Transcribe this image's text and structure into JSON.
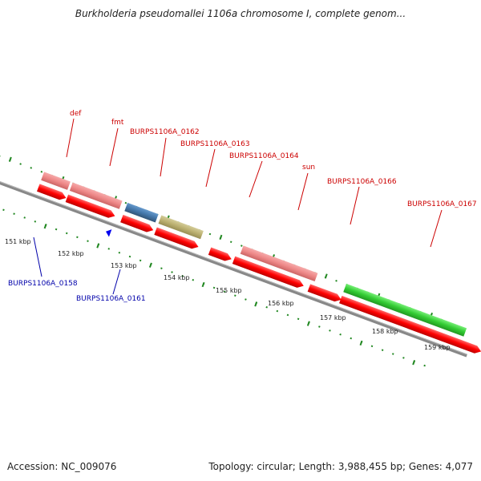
{
  "title": "Burkholderia pseudomallei 1106a chromosome I, complete genom...",
  "footer": {
    "accession": "Accession: NC_009076",
    "stats": "Topology: circular; Length: 3,988,455 bp; Genes: 4,077"
  },
  "colors": {
    "cds_forward": "#ff0000",
    "gene_light": "#ee8888",
    "gene_steel": "#4477aa",
    "gene_olive": "#bbb070",
    "gene_green": "#33cc33",
    "gene_blue": "#0000ee",
    "gene_lime": "#aaee33",
    "gene_magenta": "#ee33aa",
    "backbone": "#888888",
    "ticks": "#228822",
    "label_red": "#cc0000",
    "label_blue": "#0000aa"
  },
  "scale_labels": [
    "151 kbp",
    "152 kbp",
    "153 kbp",
    "154 kbp",
    "155 kbp",
    "156 kbp",
    "157 kbp",
    "158 kbp",
    "159 kbp"
  ],
  "gene_labels_top": [
    "def",
    "fmt",
    "BURPS1106A_0162",
    "BURPS1106A_0163",
    "BURPS1106A_0164",
    "sun",
    "BURPS1106A_0166",
    "BURPS1106A_0167"
  ],
  "gene_labels_bottom": [
    "BURPS1106A_0158",
    "BURPS1106A_0161"
  ]
}
